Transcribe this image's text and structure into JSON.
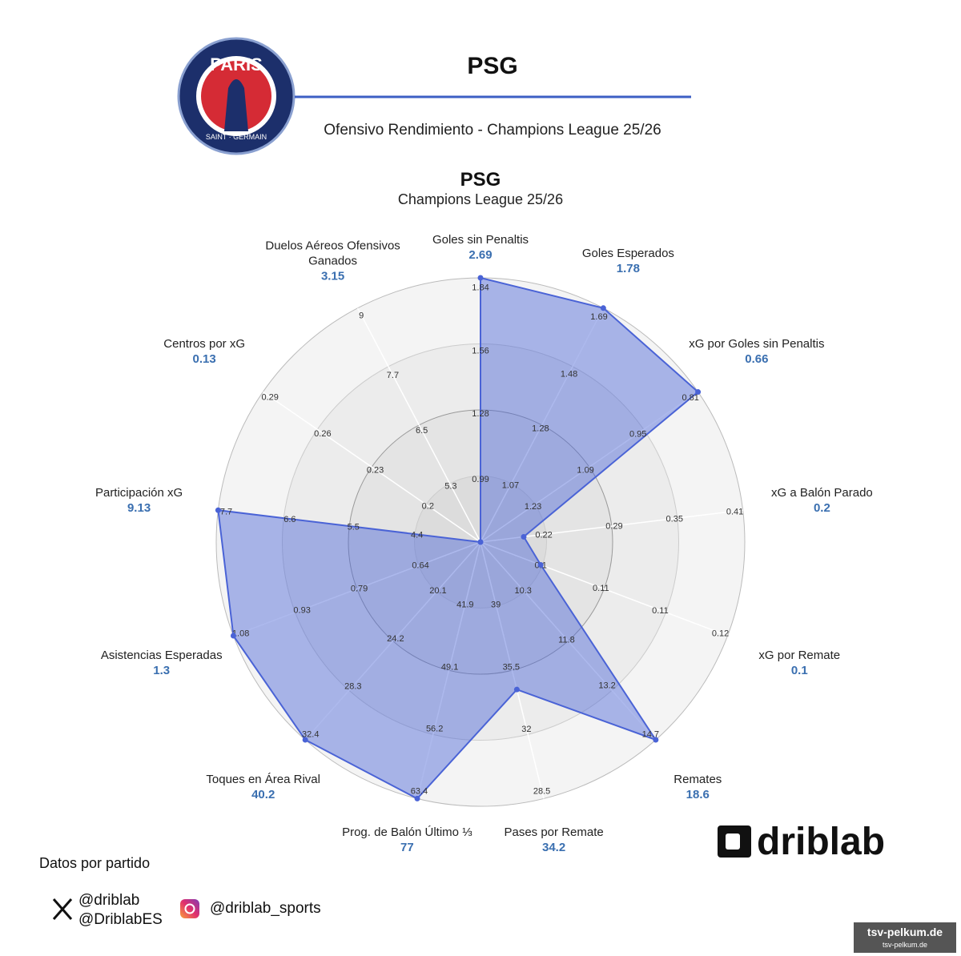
{
  "header": {
    "title": "PSG",
    "subtitle": "Ofensivo Rendimiento - Champions League 25/26",
    "logo_text": [
      "PARIS",
      "SAINT · GERMAIN"
    ]
  },
  "chart_data": {
    "type": "radar",
    "title": "PSG",
    "subtitle": "Champions League 25/26",
    "color": "#4a63d6",
    "categories": [
      "Goles sin Penaltis",
      "Goles Esperados",
      "xG por Goles sin Penaltis",
      "xG a Balón Parado",
      "xG por Remate",
      "Remates",
      "Pases por Remate",
      "Prog. de Balón Último ⅓",
      "Toques en Área Rival",
      "Asistencias Esperadas",
      "Participación xG",
      "Centros por xG",
      "Duelos Aéreos Ofensivos Ganados"
    ],
    "values": [
      2.69,
      1.78,
      0.66,
      0.2,
      0.1,
      18.6,
      34.2,
      77,
      40.2,
      1.3,
      9.13,
      0.13,
      3.15
    ],
    "axes": [
      {
        "rlim": [
          0.71,
          1.88
        ],
        "rticks": [
          0.99,
          1.28,
          1.56,
          1.84
        ]
      },
      {
        "rlim": [
          0.86,
          1.72
        ],
        "rticks": [
          1.07,
          1.28,
          1.48,
          1.69
        ]
      },
      {
        "rlim": [
          1.37,
          0.79
        ],
        "rticks": [
          1.23,
          1.09,
          0.95,
          0.81
        ]
      },
      {
        "rlim": [
          0.157,
          0.418
        ],
        "rticks": [
          0.22,
          0.29,
          0.35,
          0.41
        ]
      },
      {
        "rlim": [
          0.0933,
          0.1208
        ],
        "rticks": [
          0.1,
          {
            "value": 0.1067,
            "label": "0.11"
          },
          {
            "value": 0.1133,
            "label": "0.11"
          },
          0.12
        ]
      },
      {
        "rlim": [
          8.83,
          14.88
        ],
        "rticks": [
          10.3,
          11.8,
          13.2,
          14.7
        ]
      },
      {
        "rlim": [
          42.5,
          28.06
        ],
        "rticks": [
          39,
          35.5,
          32,
          28.5
        ]
      },
      {
        "rlim": [
          34.73,
          64.3
        ],
        "rticks": [
          41.9,
          49.1,
          56.2,
          63.4
        ]
      },
      {
        "rlim": [
          16,
          32.91
        ],
        "rticks": [
          20.1,
          24.2,
          28.3,
          32.4
        ]
      },
      {
        "rlim": [
          0.493,
          1.098
        ],
        "rticks": [
          0.64,
          0.79,
          0.93,
          1.08
        ]
      },
      {
        "rlim": [
          3.3,
          7.84
        ],
        "rticks": [
          4.4,
          5.5,
          6.6,
          7.7
        ]
      },
      {
        "rlim": [
          0.17,
          0.294
        ],
        "rticks": [
          0.2,
          0.23,
          0.26,
          0.29
        ]
      },
      {
        "rlim": [
          4.07,
          9.15
        ],
        "rticks": [
          5.3,
          6.5,
          7.7,
          9
        ]
      }
    ]
  },
  "footer": {
    "note": "Datos por partido",
    "twitter": [
      "@driblab",
      "@DriblabES"
    ],
    "instagram": "@driblab_sports",
    "brand": "driblab",
    "watermark": [
      "tsv-pelkum.de",
      "tsv-pelkum.de"
    ]
  }
}
